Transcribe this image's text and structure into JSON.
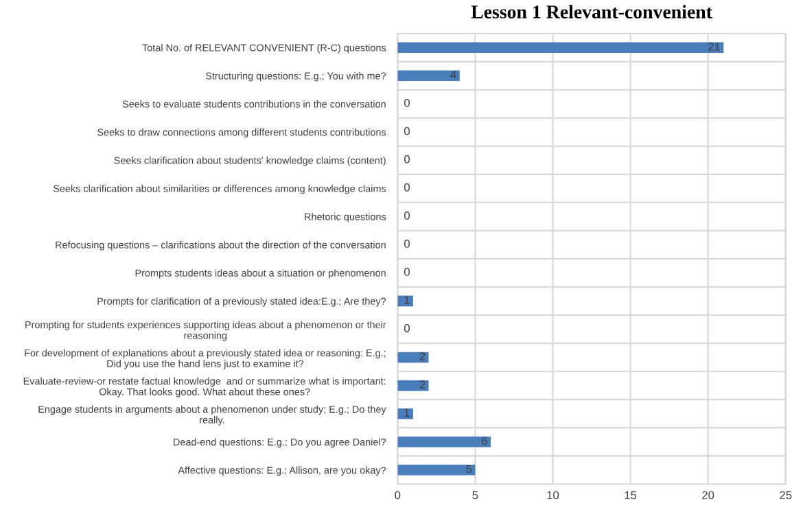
{
  "chart_data": {
    "type": "bar",
    "orientation": "horizontal",
    "title": "Lesson 1 Relevant-convenient",
    "categories": [
      "Total No. of RELEVANT CONVENIENT (R-C) questions",
      "Structuring questions: E.g.; You with me?",
      "Seeks to evaluate students contributions in the conversation",
      "Seeks to draw connections among different students contributions",
      "Seeks clarification about students' knowledge claims (content)",
      "Seeks clarification about similarities or differences among knowledge claims",
      "Rhetoric questions",
      "Refocusing questions – clarifications about the direction of the conversation",
      "Prompts students ideas about a situation or phenomenon",
      "Prompts for clarification of a previously stated idea:E.g.; Are they?",
      "Prompting for students experiences supporting ideas about a phenomenon or their\nreasoning",
      "For development of explanations about a previously stated idea or reasoning: E.g.;\nDid you use the hand lens just to examine it?",
      "Evaluate-review-or restate factual knowledge  and or summarize what is important:\nOkay. That looks good. What about these ones?",
      "Engage students in arguments about a phenomenon under study: E.g.; Do they\nreally.",
      "Dead-end questions: E.g.; Do you agree Daniel?",
      "Affective questions: E.g.; Allison, are you okay?"
    ],
    "values": [
      21,
      4,
      0,
      0,
      0,
      0,
      0,
      0,
      0,
      1,
      0,
      2,
      2,
      1,
      6,
      5
    ],
    "color": "#4a7ebb",
    "xlim": [
      0,
      25
    ],
    "xticks": [
      0,
      5,
      10,
      15,
      20,
      25
    ],
    "grid": "x",
    "data_labels": true
  }
}
